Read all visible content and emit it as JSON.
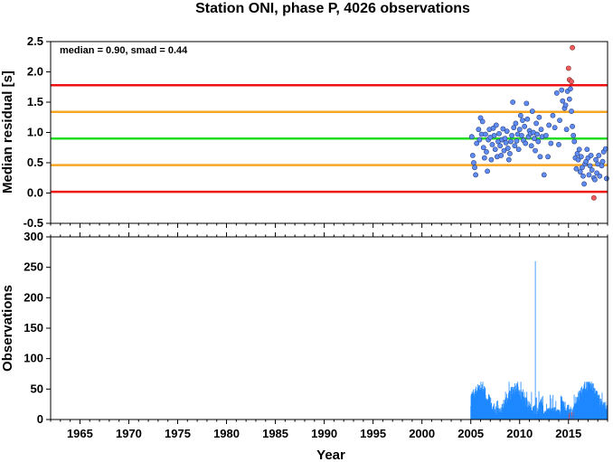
{
  "chart_data": {
    "title": "Station ONI, phase P, 4026 observations",
    "xlabel": "Year",
    "xlim": [
      1962.0,
      2019.0
    ],
    "xticks": [
      1965,
      1970,
      1975,
      1980,
      1985,
      1990,
      1995,
      2000,
      2005,
      2010,
      2015
    ],
    "panels": [
      {
        "type": "scatter",
        "ylabel": "Median residual [s]",
        "ylim": [
          -0.5,
          2.5
        ],
        "yticks": [
          -0.5,
          0.0,
          0.5,
          1.0,
          1.5,
          2.0,
          2.5
        ],
        "annotation": "median = 0.90, smad = 0.44",
        "reference_lines": [
          {
            "name": "median",
            "y": 0.9,
            "color": "#22dd22"
          },
          {
            "name": "median + smad",
            "y": 1.34,
            "color": "#f5a623"
          },
          {
            "name": "median - smad",
            "y": 0.46,
            "color": "#f5a623"
          },
          {
            "name": "median + 2 smad",
            "y": 1.78,
            "color": "#ee1111"
          },
          {
            "name": "median - 2 smad",
            "y": 0.02,
            "color": "#ee1111"
          }
        ],
        "point_color": "#5f8df5",
        "outlier_color": "#f25c5c",
        "points": [
          [
            2005.1,
            0.93
          ],
          [
            2005.2,
            0.62
          ],
          [
            2005.3,
            0.5
          ],
          [
            2005.4,
            0.42
          ],
          [
            2005.5,
            0.3
          ],
          [
            2005.6,
            0.82
          ],
          [
            2005.8,
            1.05
          ],
          [
            2005.9,
            0.88
          ],
          [
            2006.0,
            1.24
          ],
          [
            2006.1,
            0.97
          ],
          [
            2006.2,
            1.18
          ],
          [
            2006.3,
            0.75
          ],
          [
            2006.4,
            0.58
          ],
          [
            2006.5,
            0.97
          ],
          [
            2006.6,
            0.68
          ],
          [
            2006.7,
            0.36
          ],
          [
            2006.8,
            0.88
          ],
          [
            2006.9,
            1.05
          ],
          [
            2007.0,
            0.92
          ],
          [
            2007.1,
            0.55
          ],
          [
            2007.2,
            0.8
          ],
          [
            2007.3,
            1.07
          ],
          [
            2007.4,
            0.95
          ],
          [
            2007.5,
            0.72
          ],
          [
            2007.6,
            1.12
          ],
          [
            2007.7,
            0.6
          ],
          [
            2007.8,
            0.85
          ],
          [
            2007.9,
            0.98
          ],
          [
            2008.0,
            0.78
          ],
          [
            2008.1,
            0.62
          ],
          [
            2008.2,
            0.88
          ],
          [
            2008.3,
            1.06
          ],
          [
            2008.4,
            0.7
          ],
          [
            2008.5,
            0.9
          ],
          [
            2008.6,
            0.83
          ],
          [
            2008.7,
            1.02
          ],
          [
            2008.8,
            0.74
          ],
          [
            2008.9,
            0.55
          ],
          [
            2009.0,
            0.65
          ],
          [
            2009.1,
            0.85
          ],
          [
            2009.2,
            0.95
          ],
          [
            2009.3,
            1.5
          ],
          [
            2009.4,
            1.08
          ],
          [
            2009.5,
            0.78
          ],
          [
            2009.6,
            1.15
          ],
          [
            2009.7,
            0.86
          ],
          [
            2009.8,
            0.97
          ],
          [
            2009.9,
            0.72
          ],
          [
            2010.0,
            1.05
          ],
          [
            2010.1,
            1.28
          ],
          [
            2010.2,
            0.95
          ],
          [
            2010.3,
            1.2
          ],
          [
            2010.4,
            0.87
          ],
          [
            2010.5,
            1.1
          ],
          [
            2010.6,
            0.82
          ],
          [
            2010.7,
            1.48
          ],
          [
            2010.8,
            1.22
          ],
          [
            2010.9,
            0.93
          ],
          [
            2011.0,
            1.03
          ],
          [
            2011.1,
            0.98
          ],
          [
            2011.2,
            0.78
          ],
          [
            2011.3,
            1.35
          ],
          [
            2011.4,
            1.0
          ],
          [
            2011.5,
            0.9
          ],
          [
            2011.6,
            0.7
          ],
          [
            2011.7,
            1.15
          ],
          [
            2011.8,
            0.97
          ],
          [
            2011.9,
            0.85
          ],
          [
            2012.0,
            1.25
          ],
          [
            2012.1,
            0.6
          ],
          [
            2012.2,
            1.05
          ],
          [
            2012.3,
            0.93
          ],
          [
            2012.5,
            0.3
          ],
          [
            2012.7,
            0.95
          ],
          [
            2012.9,
            0.6
          ],
          [
            2013.0,
            1.12
          ],
          [
            2013.2,
            0.82
          ],
          [
            2013.4,
            1.28
          ],
          [
            2013.6,
            1.08
          ],
          [
            2013.8,
            1.65
          ],
          [
            2014.0,
            0.8
          ],
          [
            2014.1,
            1.2
          ],
          [
            2014.3,
            1.7
          ],
          [
            2014.4,
            1.52
          ],
          [
            2014.6,
            1.4
          ],
          [
            2014.7,
            1.45
          ],
          [
            2014.8,
            1.05
          ],
          [
            2014.9,
            1.68
          ],
          [
            2015.1,
            1.55
          ],
          [
            2015.2,
            1.72
          ],
          [
            2015.3,
            1.35
          ],
          [
            2015.4,
            1.1
          ],
          [
            2015.5,
            0.95
          ],
          [
            2015.6,
            0.85
          ],
          [
            2015.7,
            0.58
          ],
          [
            2015.8,
            0.4
          ],
          [
            2015.9,
            0.65
          ],
          [
            2016.0,
            0.55
          ],
          [
            2016.1,
            0.72
          ],
          [
            2016.2,
            0.35
          ],
          [
            2016.3,
            0.6
          ],
          [
            2016.4,
            0.42
          ],
          [
            2016.5,
            0.28
          ],
          [
            2016.6,
            0.15
          ],
          [
            2016.7,
            0.48
          ],
          [
            2016.8,
            0.52
          ],
          [
            2016.9,
            0.72
          ],
          [
            2017.0,
            0.58
          ],
          [
            2017.1,
            0.3
          ],
          [
            2017.2,
            0.45
          ],
          [
            2017.3,
            0.62
          ],
          [
            2017.4,
            0.38
          ],
          [
            2017.6,
            0.25
          ],
          [
            2017.7,
            0.22
          ],
          [
            2017.8,
            0.55
          ],
          [
            2017.9,
            0.33
          ],
          [
            2018.0,
            0.48
          ],
          [
            2018.1,
            0.62
          ],
          [
            2018.2,
            0.28
          ],
          [
            2018.4,
            0.45
          ],
          [
            2018.5,
            0.52
          ],
          [
            2018.6,
            0.68
          ],
          [
            2018.8,
            0.73
          ],
          [
            2018.9,
            0.24
          ]
        ],
        "outliers": [
          [
            2015.0,
            2.06
          ],
          [
            2015.1,
            1.87
          ],
          [
            2015.3,
            1.84
          ],
          [
            2015.4,
            2.4
          ],
          [
            2017.6,
            -0.08
          ]
        ]
      },
      {
        "type": "bar",
        "ylabel": "Observations",
        "ylim": [
          0,
          300
        ],
        "yticks": [
          0,
          50,
          100,
          150,
          200,
          250,
          300
        ],
        "bar_color": "#1e88ff",
        "highlight_color": "#e53935",
        "spike": {
          "x": 2011.6,
          "value": 260
        },
        "highlight_ranges": [
          [
            2015.0,
            2015.6
          ]
        ]
      }
    ]
  }
}
